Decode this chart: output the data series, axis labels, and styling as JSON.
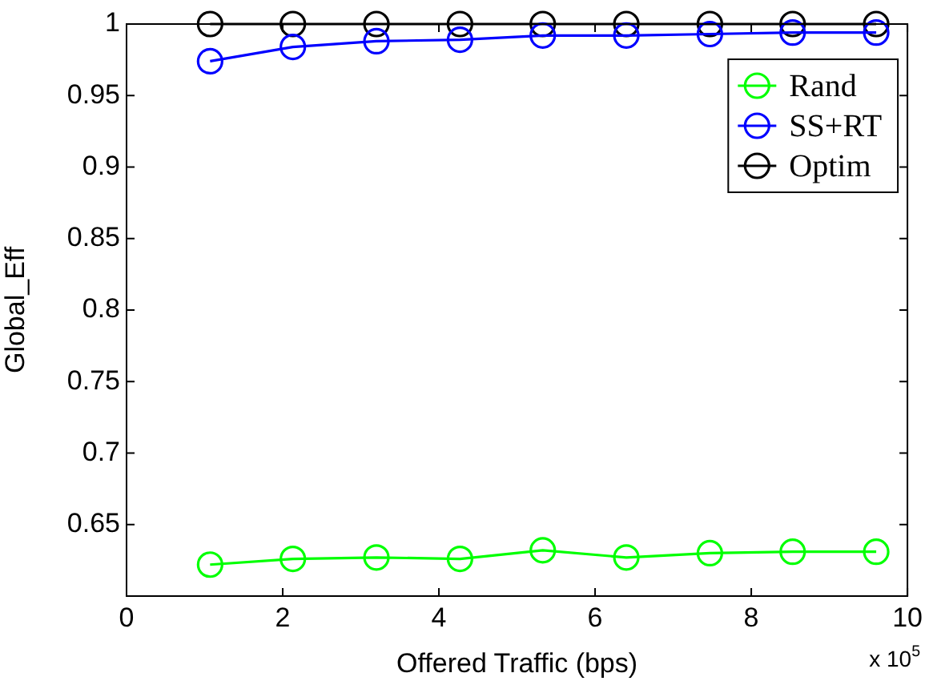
{
  "chart_data": {
    "type": "line",
    "xlabel": "Offered Traffic (bps)",
    "ylabel": "Global_Eff",
    "x": [
      1.07,
      2.13,
      3.2,
      4.27,
      5.33,
      6.4,
      7.47,
      8.53,
      9.6
    ],
    "series": [
      {
        "name": "Rand",
        "color": "#00ff00",
        "values": [
          0.622,
          0.626,
          0.627,
          0.626,
          0.632,
          0.627,
          0.63,
          0.631,
          0.631
        ]
      },
      {
        "name": "SS+RT",
        "color": "#0000ff",
        "values": [
          0.974,
          0.984,
          0.988,
          0.989,
          0.992,
          0.992,
          0.993,
          0.994,
          0.994
        ]
      },
      {
        "name": "Optim",
        "color": "#000000",
        "values": [
          1,
          1,
          1,
          1,
          1,
          1,
          1,
          1,
          1
        ]
      }
    ],
    "xlim": [
      0,
      10
    ],
    "xticks": [
      0,
      2,
      4,
      6,
      8,
      10
    ],
    "ylim": [
      0.6,
      1
    ],
    "yticks": [
      0.65,
      0.7,
      0.75,
      0.8,
      0.85,
      0.9,
      0.95,
      1
    ],
    "annotations": [
      "x 10$^{5}$"
    ],
    "marker": "circle",
    "line_style": "solid",
    "grid": false,
    "legend": "top right"
  }
}
